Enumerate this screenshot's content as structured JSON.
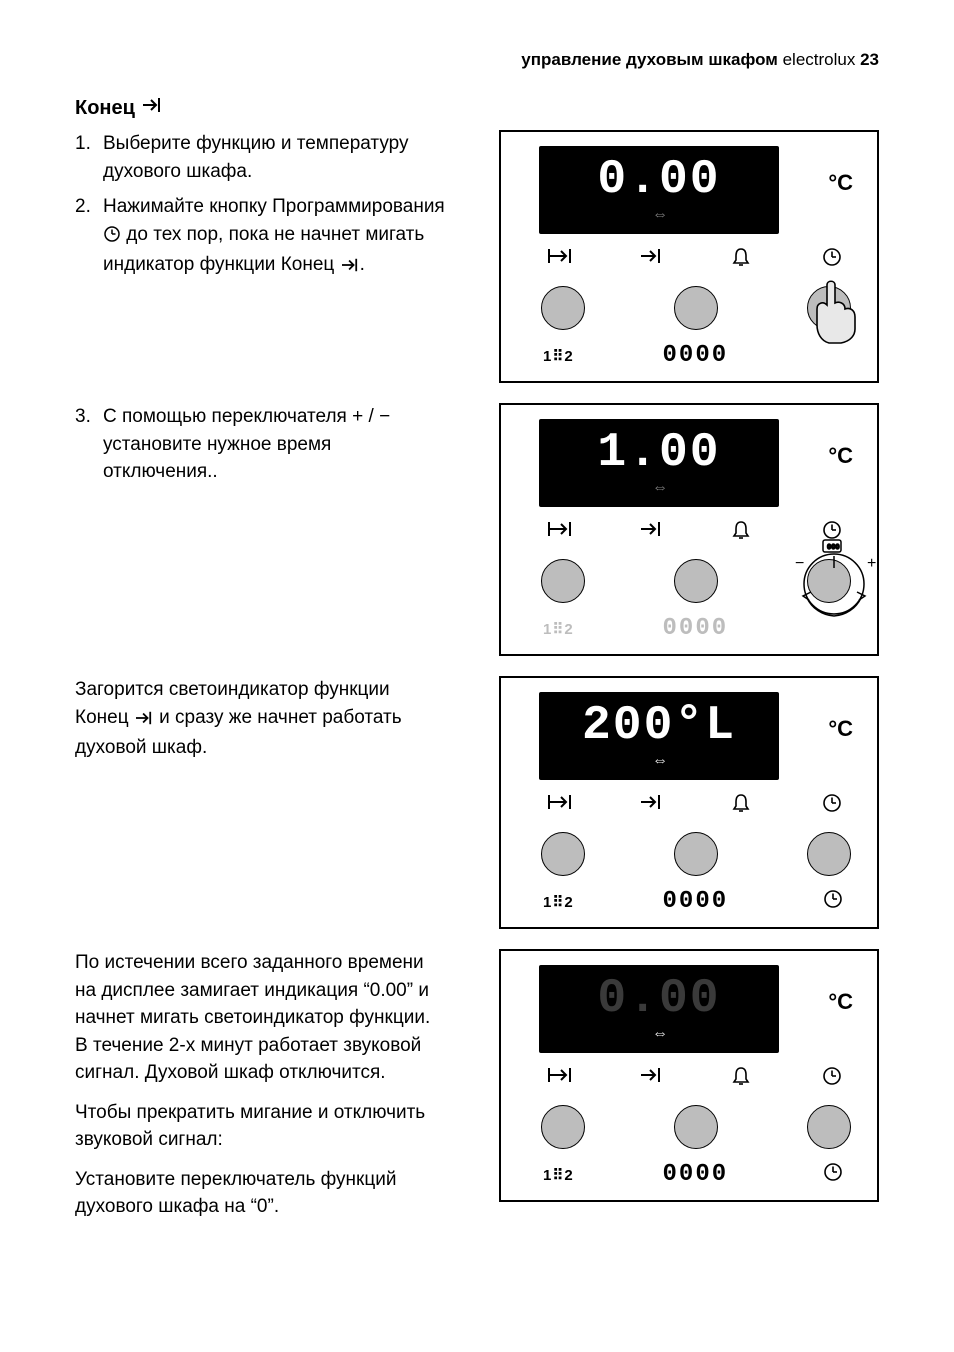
{
  "header": {
    "bold": "управление духовым шкафом",
    "light": " electrolux ",
    "page": "23"
  },
  "section": {
    "title": "Конец"
  },
  "steps": {
    "s1": {
      "n": "1.",
      "text": "Выберите функцию и температуру духового шкафа."
    },
    "s2": {
      "n": "2.",
      "prefix": "Нажимайте кнопку Программирования",
      "suffix": " до тех пор, пока не начнет мигать индикатор функции Конец "
    },
    "s3": {
      "n": "3.",
      "prefix": "С помощью переключателя ",
      "plus": "+",
      "slash": " / ",
      "minus": "−",
      "suffix": " установите нужное время отключения.."
    }
  },
  "p1": {
    "prefix": "Загорится светоиндикатор функции Конец ",
    "suffix": " и сразу же начнет работать духовой шкаф."
  },
  "p2": "По истечении всего заданного времени на дисплее замигает индикация “0.00” и начнет мигать светоиндикатор функции. В течение 2-х минут работает звуковой сигнал. Духовой шкаф отключится.",
  "p3": "Чтобы прекратить мигание и отключить звуковой сигнал:",
  "p4": "Установите переключатель функций духового шкафа на “0”.",
  "panel_common": {
    "degC": "°C",
    "iso_left": "1⠿2",
    "secondary": "0000"
  },
  "panel1": {
    "digits": "0.00",
    "digits_dim": false,
    "sub_bright": false,
    "left_dim": false,
    "mid_dim": false,
    "finger": true,
    "knob": false,
    "br_right_clock": false
  },
  "panel2": {
    "digits": "1.00",
    "digits_dim": false,
    "sub_bright": false,
    "left_dim": true,
    "mid_dim": true,
    "finger": false,
    "knob": true,
    "br_right_clock": false
  },
  "panel3": {
    "digits": "200",
    "suffix": "°L",
    "digits_dim": false,
    "sub_bright": true,
    "left_dim": false,
    "mid_dim": false,
    "finger": false,
    "knob": false,
    "br_right_clock": true
  },
  "panel4": {
    "digits": "0.00",
    "digits_dim": true,
    "sub_bright": true,
    "left_dim": false,
    "mid_dim": false,
    "finger": false,
    "knob": false,
    "br_right_clock": true
  }
}
